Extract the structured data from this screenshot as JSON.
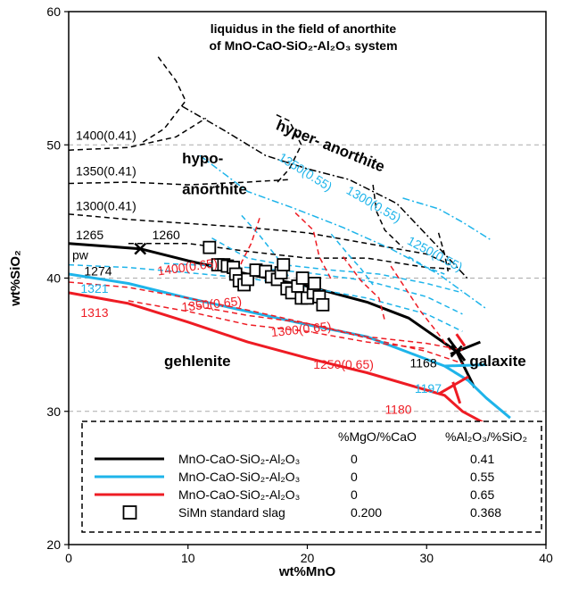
{
  "chart_data": {
    "type": "line",
    "title": [
      "liquidus in the field of anorthite",
      "of MnO-CaO-SiO₂-Al₂O₃ system"
    ],
    "xlabel": "wt%MnO",
    "ylabel": "wt%SiO₂",
    "xlim": [
      0,
      40
    ],
    "ylim": [
      20,
      60
    ],
    "xticks": [
      "0",
      "10",
      "20",
      "30",
      "40"
    ],
    "yticks": [
      "20",
      "30",
      "40",
      "50",
      "60"
    ],
    "ygrid": [
      30,
      40,
      50
    ],
    "colors": {
      "black": "#000000",
      "blue": "#1eb4ea",
      "red": "#ee1c24",
      "grid": "#aaaaaa"
    },
    "series": [
      {
        "color": "black",
        "style": "solid",
        "points": [
          [
            0,
            42.6
          ],
          [
            6,
            42.2
          ],
          [
            10,
            41.3
          ],
          [
            15,
            40.3
          ],
          [
            20,
            39.4
          ],
          [
            25,
            38.2
          ],
          [
            28.5,
            37
          ],
          [
            32.5,
            34.5
          ],
          [
            34,
            31.8
          ]
        ]
      },
      {
        "color": "blue",
        "style": "solid",
        "points": [
          [
            0,
            40.3
          ],
          [
            5,
            39.6
          ],
          [
            10,
            38.5
          ],
          [
            15,
            37.5
          ],
          [
            20,
            36.5
          ],
          [
            25,
            35.6
          ],
          [
            31.5,
            33.4
          ],
          [
            33.5,
            32.3
          ],
          [
            35,
            31
          ],
          [
            37,
            29.5
          ]
        ]
      },
      {
        "color": "red",
        "style": "solid",
        "points": [
          [
            0,
            38.9
          ],
          [
            5,
            38.1
          ],
          [
            10,
            36.7
          ],
          [
            15,
            35.2
          ],
          [
            20,
            34
          ],
          [
            25,
            32.9
          ],
          [
            31.5,
            31.2
          ],
          [
            33,
            30
          ],
          [
            35.5,
            28.8
          ]
        ]
      },
      {
        "color": "black",
        "style": "solid",
        "points": [
          [
            32,
            34.3
          ],
          [
            34.5,
            35.2
          ]
        ]
      },
      {
        "color": "black",
        "style": "solid",
        "points": [
          [
            31.8,
            35.5
          ],
          [
            33.2,
            33.8
          ]
        ]
      },
      {
        "color": "blue",
        "style": "solid",
        "points": [
          [
            31.5,
            33.4
          ],
          [
            35,
            33.5
          ]
        ]
      },
      {
        "color": "black",
        "style": "dashed",
        "points": [
          [
            0,
            49.6
          ],
          [
            5,
            49.8
          ],
          [
            9,
            50.6
          ],
          [
            11.5,
            52
          ]
        ]
      },
      {
        "color": "black",
        "style": "dashed",
        "points": [
          [
            0,
            47.1
          ],
          [
            5,
            47.2
          ],
          [
            10,
            47
          ],
          [
            15,
            47.2
          ],
          [
            18.5,
            47.4
          ]
        ]
      },
      {
        "color": "black",
        "style": "dashed",
        "points": [
          [
            0,
            44.8
          ],
          [
            5,
            44.4
          ],
          [
            10,
            44.1
          ],
          [
            15,
            43.8
          ],
          [
            20,
            43.4
          ],
          [
            25,
            42.6
          ],
          [
            30,
            41.8
          ],
          [
            32,
            41
          ]
        ]
      },
      {
        "color": "black",
        "style": "dashed",
        "points": [
          [
            5,
            42.6
          ],
          [
            10,
            42.6
          ],
          [
            15,
            42
          ],
          [
            20,
            41.5
          ],
          [
            25,
            41.5
          ],
          [
            30,
            40.8
          ],
          [
            32,
            40.7
          ]
        ]
      },
      {
        "color": "black",
        "style": "dashed",
        "points": [
          [
            7.5,
            56.6
          ],
          [
            9,
            54.8
          ],
          [
            9.8,
            53.3
          ],
          [
            8,
            51.2
          ],
          [
            6.2,
            50.2
          ]
        ]
      },
      {
        "color": "black",
        "style": "dashed",
        "points": [
          [
            17.5,
            47.2
          ],
          [
            18.5,
            48.2
          ],
          [
            19.5,
            50
          ],
          [
            18.5,
            51.8
          ],
          [
            17.3,
            52.3
          ]
        ]
      },
      {
        "color": "black",
        "style": "dashed",
        "points": [
          [
            25.5,
            47
          ],
          [
            25.8,
            45
          ],
          [
            26.5,
            43.6
          ],
          [
            28,
            42.3
          ]
        ]
      },
      {
        "color": "black",
        "style": "dashed",
        "points": [
          [
            31,
            43.4
          ],
          [
            31.5,
            41.8
          ],
          [
            31.8,
            40.5
          ]
        ]
      },
      {
        "color": "black",
        "style": "dashdot",
        "points": [
          [
            9.5,
            52.9
          ],
          [
            13,
            51.1
          ],
          [
            16.5,
            49.2
          ],
          [
            20,
            48.2
          ],
          [
            23.5,
            47.4
          ],
          [
            27.5,
            45.6
          ],
          [
            31,
            42.3
          ],
          [
            33.5,
            39.9
          ]
        ]
      },
      {
        "color": "blue",
        "style": "dashed",
        "points": [
          [
            0,
            41
          ],
          [
            5,
            40.8
          ],
          [
            10,
            40.4
          ],
          [
            15,
            40
          ],
          [
            20,
            39.3
          ],
          [
            25,
            38.5
          ],
          [
            30,
            37.3
          ],
          [
            33,
            36
          ]
        ]
      },
      {
        "color": "blue",
        "style": "dashed",
        "points": [
          [
            8,
            41.1
          ],
          [
            15,
            40.8
          ],
          [
            20,
            40.4
          ],
          [
            25,
            39.8
          ],
          [
            30,
            38.6
          ],
          [
            33,
            37.3
          ]
        ]
      },
      {
        "color": "blue",
        "style": "dashed",
        "points": [
          [
            12,
            43
          ],
          [
            15,
            41.5
          ],
          [
            18,
            41
          ],
          [
            22,
            40.6
          ],
          [
            26,
            40.3
          ],
          [
            30,
            39.6
          ],
          [
            33,
            38.9
          ]
        ]
      },
      {
        "color": "blue",
        "style": "dashed",
        "points": [
          [
            14.5,
            44.7
          ],
          [
            16,
            43.2
          ],
          [
            17.5,
            41.5
          ],
          [
            18.5,
            40
          ]
        ]
      },
      {
        "color": "blue",
        "style": "dashed",
        "points": [
          [
            22,
            43.3
          ],
          [
            23.5,
            41.7
          ],
          [
            24.5,
            40.7
          ],
          [
            25.5,
            39.5
          ]
        ]
      },
      {
        "color": "blue",
        "style": "dashed",
        "points": [
          [
            28.5,
            41.6
          ],
          [
            30,
            40.8
          ],
          [
            31.5,
            40.3
          ]
        ]
      },
      {
        "color": "blue",
        "style": "dashdot",
        "points": [
          [
            11,
            49.2
          ],
          [
            15,
            46.5
          ],
          [
            19,
            45.2
          ],
          [
            23,
            43.8
          ],
          [
            27,
            42.2
          ],
          [
            31,
            40.3
          ],
          [
            35,
            37.7
          ]
        ]
      },
      {
        "color": "blue",
        "style": "dashdot",
        "points": [
          [
            28,
            46
          ],
          [
            31,
            45.2
          ],
          [
            33,
            44.2
          ],
          [
            35.5,
            42.8
          ]
        ]
      },
      {
        "color": "red",
        "style": "dashed",
        "points": [
          [
            0,
            39.7
          ],
          [
            5,
            39.3
          ],
          [
            10,
            38.5
          ],
          [
            15,
            37.6
          ],
          [
            20,
            36.6
          ],
          [
            25,
            35.5
          ],
          [
            30,
            34.5
          ],
          [
            33,
            33.6
          ]
        ]
      },
      {
        "color": "red",
        "style": "dashed",
        "points": [
          [
            5,
            38.3
          ],
          [
            10,
            37.5
          ],
          [
            15,
            36.5
          ],
          [
            20,
            36
          ],
          [
            25,
            35.2
          ],
          [
            30,
            34.7
          ]
        ]
      },
      {
        "color": "red",
        "style": "dashed",
        "points": [
          [
            10,
            38
          ],
          [
            15,
            37.2
          ],
          [
            20,
            36.6
          ],
          [
            25,
            35.6
          ],
          [
            30,
            35.1
          ],
          [
            33,
            34.6
          ]
        ]
      },
      {
        "color": "red",
        "style": "dashed",
        "points": [
          [
            16,
            44.5
          ],
          [
            15.3,
            42.6
          ],
          [
            14.5,
            41.2
          ],
          [
            14.2,
            40.3
          ]
        ]
      },
      {
        "color": "red",
        "style": "dashed",
        "points": [
          [
            19,
            44.9
          ],
          [
            20.5,
            43.6
          ],
          [
            21,
            41.6
          ],
          [
            22,
            39.9
          ]
        ]
      },
      {
        "color": "red",
        "style": "dashed",
        "points": [
          [
            23,
            41.6
          ],
          [
            24.5,
            39.8
          ],
          [
            26,
            38.5
          ],
          [
            26.5,
            36.8
          ]
        ]
      },
      {
        "color": "red",
        "style": "dashed",
        "points": [
          [
            27,
            40.9
          ],
          [
            29.5,
            37.5
          ],
          [
            31,
            35.8
          ],
          [
            32,
            34.6
          ]
        ]
      },
      {
        "color": "red",
        "style": "solid",
        "points": [
          [
            31,
            31.3
          ],
          [
            33.5,
            32.6
          ]
        ]
      },
      {
        "color": "red",
        "style": "solid",
        "points": [
          [
            32.2,
            32.2
          ],
          [
            32.8,
            30.6
          ]
        ]
      },
      {
        "color": "red",
        "style": "solid",
        "points": [
          [
            32.5,
            35.8
          ],
          [
            33.2,
            34.9
          ]
        ]
      }
    ],
    "crosses": [
      {
        "color": "black",
        "x": 6,
        "y": 42.2
      },
      {
        "color": "black",
        "x": 32.5,
        "y": 34.5
      }
    ],
    "squares": [
      [
        11.8,
        42.3
      ],
      [
        12.5,
        41
      ],
      [
        13,
        41
      ],
      [
        13.3,
        40.9
      ],
      [
        13.8,
        40.8
      ],
      [
        14,
        40.3
      ],
      [
        14.3,
        39.8
      ],
      [
        14.7,
        39.5
      ],
      [
        15,
        39.9
      ],
      [
        15.7,
        40.6
      ],
      [
        16.5,
        40.5
      ],
      [
        17,
        40.1
      ],
      [
        17.5,
        39.9
      ],
      [
        17.8,
        40.4
      ],
      [
        18,
        41
      ],
      [
        18.3,
        39.2
      ],
      [
        18.7,
        38.9
      ],
      [
        19.2,
        39.4
      ],
      [
        19.5,
        38.5
      ],
      [
        19.6,
        40
      ],
      [
        20,
        38.5
      ],
      [
        20.5,
        38.9
      ],
      [
        20.6,
        39.6
      ],
      [
        21,
        38.6
      ],
      [
        21.3,
        38
      ]
    ],
    "annotations": [
      {
        "text": "1400(0.41)",
        "x": 0.6,
        "y": 50.4,
        "color": "black",
        "bold": true,
        "rotate": 0
      },
      {
        "text": "1350(0.41)",
        "x": 0.6,
        "y": 47.7,
        "color": "black",
        "bold": false,
        "rotate": 0
      },
      {
        "text": "1300(0.41)",
        "x": 0.6,
        "y": 45.1,
        "color": "black",
        "bold": false,
        "rotate": 0
      },
      {
        "text": "1265",
        "x": 0.6,
        "y": 42.9,
        "color": "black",
        "bold": false,
        "rotate": 0,
        "size": 16
      },
      {
        "text": "1260",
        "x": 7,
        "y": 42.9,
        "color": "black",
        "bold": false,
        "rotate": 0,
        "size": 16
      },
      {
        "text": "pw",
        "x": 0.3,
        "y": 41.4,
        "color": "black",
        "bold": true,
        "rotate": 0,
        "size": 17
      },
      {
        "text": "1274",
        "x": 1.3,
        "y": 40.2,
        "color": "black",
        "bold": false,
        "rotate": 0,
        "size": 16
      },
      {
        "text": "1321",
        "x": 1,
        "y": 38.9,
        "color": "blue",
        "bold": false,
        "rotate": 0,
        "size": 16
      },
      {
        "text": "1313",
        "x": 1,
        "y": 37.1,
        "color": "red",
        "bold": false,
        "rotate": 0,
        "size": 16
      },
      {
        "text": "1400(0.65)",
        "x": 7.5,
        "y": 40.2,
        "color": "red",
        "bold": true,
        "rotate": -8
      },
      {
        "text": "1350(0.65)",
        "x": 9.5,
        "y": 37.5,
        "color": "red",
        "bold": false,
        "rotate": -6
      },
      {
        "text": "1300(0.65)",
        "x": 17,
        "y": 35.6,
        "color": "red",
        "bold": false,
        "rotate": -6
      },
      {
        "text": "1250(0.65)",
        "x": 20.5,
        "y": 33.2,
        "color": "red",
        "bold": false,
        "rotate": 0
      },
      {
        "text": "1350(0.55)",
        "x": 17.5,
        "y": 48.9,
        "color": "blue",
        "bold": false,
        "rotate": 32
      },
      {
        "text": "1300(0.55)",
        "x": 23.2,
        "y": 46.4,
        "color": "blue",
        "bold": false,
        "rotate": 30
      },
      {
        "text": "1250(0.55)",
        "x": 28.3,
        "y": 42.6,
        "color": "blue",
        "bold": false,
        "rotate": 28
      },
      {
        "text": "1168",
        "x": 28.6,
        "y": 33.3,
        "color": "black",
        "bold": false,
        "rotate": 0,
        "size": 16
      },
      {
        "text": "1197",
        "x": 29,
        "y": 31.4,
        "color": "blue",
        "bold": false,
        "rotate": 0,
        "size": 16
      },
      {
        "text": "1180",
        "x": 26.5,
        "y": 29.8,
        "color": "red",
        "bold": false,
        "rotate": 0,
        "size": 16
      }
    ],
    "regions": [
      {
        "text": "hypo-",
        "x": 9.5,
        "y": 48.6,
        "rotate": 0
      },
      {
        "text": "anorthite",
        "x": 9.5,
        "y": 46.3,
        "rotate": 0
      },
      {
        "text": "hyper- anorthite",
        "x": 17.3,
        "y": 51.2,
        "rotate": 22
      },
      {
        "text": "gehlenite",
        "x": 8,
        "y": 33.4,
        "rotate": 0
      },
      {
        "text": "galaxite",
        "x": 33.6,
        "y": 33.4,
        "rotate": 0
      }
    ],
    "legend": {
      "headers": [
        "%MgO/%CaO",
        "%Al₂O₃/%SiO₂"
      ],
      "entries": [
        {
          "label": "MnO-CaO-SiO₂-Al₂O₃",
          "marker": "line",
          "color": "black",
          "mgo_cao": "0",
          "al_si": "0.41"
        },
        {
          "label": "MnO-CaO-SiO₂-Al₂O₃",
          "marker": "line",
          "color": "blue",
          "mgo_cao": "0",
          "al_si": "0.55"
        },
        {
          "label": "MnO-CaO-SiO₂-Al₂O₃",
          "marker": "line",
          "color": "red",
          "mgo_cao": "0",
          "al_si": "0.65"
        },
        {
          "label": "SiMn standard slag",
          "marker": "square",
          "color": "black",
          "mgo_cao": "0.200",
          "al_si": "0.368"
        }
      ]
    }
  }
}
